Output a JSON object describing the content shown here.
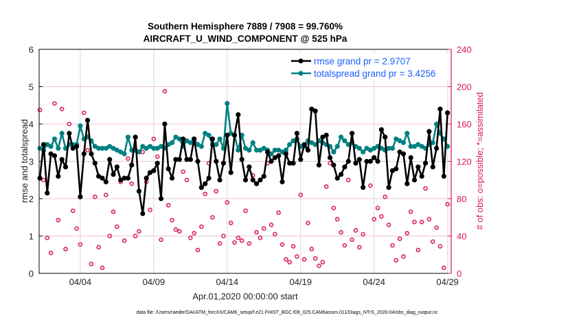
{
  "chart_data": {
    "type": "line",
    "title": "Southern Hemisphere 7889 / 7908 = 99.760%",
    "subtitle": "AIRCRAFT_U_WIND_COMPONENT @ 525 hPa",
    "xlabel": "Apr.01,2020 00:00:00 start",
    "ylabel": "rmse and totalspread",
    "y2label": "# of obs: o=possible; *=assimilated",
    "footer": "data file: /Users/raeder/DAI/ATM_forcXX/CAM6_setup/f.e21.FHIST_BGC.f09_025.CAM6assim.011/Diags_NTrS_2020-04/obs_diag_output.nc",
    "xlim": [
      0.2,
      28.25
    ],
    "ylim": [
      0,
      6
    ],
    "y2lim": [
      0,
      240
    ],
    "grid": true,
    "legend_placement": "top-right",
    "xticks": [
      {
        "day": 3,
        "label": "04/04"
      },
      {
        "day": 8,
        "label": "04/09"
      },
      {
        "day": 13,
        "label": "04/14"
      },
      {
        "day": 18,
        "label": "04/19"
      },
      {
        "day": 23,
        "label": "04/24"
      },
      {
        "day": 28,
        "label": "04/29"
      }
    ],
    "yticks": [
      "0",
      "1",
      "2",
      "3",
      "4",
      "5",
      "6"
    ],
    "y2ticks": [
      "0",
      "40",
      "80",
      "120",
      "160",
      "200",
      "240"
    ],
    "x_start_day": 0.25,
    "x_step_day": 0.25,
    "series": [
      {
        "name": "rmse grand pr = 2.9707",
        "color": "#000000",
        "values": [
          2.55,
          3.45,
          2.15,
          3.2,
          3.15,
          2.6,
          3.05,
          2.85,
          3.75,
          3.35,
          3.4,
          2.05,
          3.2,
          4.1,
          3.2,
          2.95,
          2.6,
          2.55,
          2.45,
          3.05,
          2.65,
          2.85,
          2.5,
          2.55,
          2.55,
          2.9,
          3.65,
          2.2,
          1.6,
          2.55,
          2.7,
          2.75,
          2.95,
          2.0,
          4.0,
          2.8,
          2.55,
          3.05,
          3.05,
          3.6,
          3.05,
          3.05,
          3.6,
          3.0,
          2.3,
          2.4,
          2.55,
          3.6,
          3.0,
          2.5,
          2.95,
          3.7,
          2.7,
          3.7,
          4.25,
          3.05,
          2.5,
          2.85,
          2.5,
          2.4,
          2.5,
          2.6,
          3.25,
          3.0,
          3.1,
          3.15,
          2.45,
          3.2,
          2.95,
          2.95,
          3.75,
          3.05,
          3.45,
          3.3,
          4.4,
          4.35,
          2.9,
          3.65,
          3.7,
          3.1,
          2.9,
          2.55,
          2.65,
          2.85,
          3.0,
          3.75,
          2.95,
          3.05,
          2.3,
          3.0,
          3.0,
          3.1,
          3.0,
          3.85,
          3.65,
          2.3,
          2.75,
          2.8,
          3.25,
          3.2,
          2.4,
          3.1,
          2.5,
          2.85,
          2.6,
          2.95,
          3.8,
          2.85,
          3.35,
          4.4,
          2.6,
          4.3
        ]
      },
      {
        "name": "totalspread grand pr = 3.4256",
        "color": "#008080",
        "values": [
          3.35,
          3.3,
          3.45,
          3.4,
          3.6,
          3.35,
          3.75,
          3.35,
          3.45,
          3.45,
          3.45,
          3.95,
          3.6,
          3.65,
          3.55,
          3.4,
          3.35,
          3.35,
          3.35,
          3.4,
          3.35,
          3.3,
          3.25,
          3.2,
          3.65,
          3.3,
          3.3,
          3.25,
          3.4,
          3.35,
          3.4,
          3.35,
          3.35,
          3.4,
          3.35,
          3.45,
          3.5,
          3.65,
          3.6,
          3.4,
          3.55,
          3.5,
          3.6,
          3.45,
          3.4,
          3.75,
          3.7,
          3.45,
          3.45,
          3.6,
          3.35,
          4.55,
          3.75,
          3.7,
          3.3,
          3.7,
          3.35,
          3.3,
          3.5,
          3.3,
          3.3,
          3.35,
          3.3,
          3.2,
          3.3,
          3.3,
          3.25,
          3.3,
          3.45,
          3.55,
          3.6,
          3.4,
          3.4,
          3.55,
          3.5,
          3.45,
          3.55,
          3.5,
          3.45,
          3.4,
          3.25,
          3.4,
          3.65,
          3.55,
          3.45,
          3.5,
          3.4,
          3.35,
          3.25,
          3.35,
          3.3,
          3.35,
          3.4,
          3.35,
          3.3,
          3.35,
          3.35,
          3.6,
          3.55,
          3.5,
          3.75,
          3.4,
          3.4,
          3.45,
          3.4,
          3.35,
          3.45,
          3.5,
          4.0,
          3.75,
          3.6,
          3.4
        ]
      }
    ],
    "obs_possible": [
      175,
      100,
      38,
      22,
      182,
      57,
      176,
      26,
      160,
      67,
      48,
      31,
      172,
      132,
      10,
      82,
      28,
      6,
      84,
      40,
      66,
      50,
      98,
      35,
      123,
      96,
      40,
      45,
      130,
      98,
      68,
      144,
      125,
      36,
      195,
      73,
      57,
      47,
      45,
      109,
      100,
      38,
      43,
      25,
      50,
      85,
      118,
      60,
      88,
      32,
      40,
      76,
      54,
      33,
      38,
      35,
      67,
      32,
      105,
      44,
      38,
      48,
      118,
      52,
      42,
      65,
      31,
      15,
      12,
      29,
      18,
      84,
      15,
      54,
      26,
      16,
      8,
      12,
      93,
      118,
      70,
      58,
      44,
      30,
      100,
      36,
      46,
      28,
      42,
      120,
      94,
      58,
      70,
      61,
      82,
      52,
      30,
      14,
      37,
      18,
      43,
      66,
      55,
      25,
      55,
      91,
      58,
      34,
      49,
      29,
      6,
      74
    ]
  },
  "legend": {
    "rmse": "rmse grand pr = 2.9707",
    "spread": "totalspread grand pr = 3.4256"
  },
  "colors": {
    "obs": "#d6145a",
    "grid": "#e8c5d0",
    "vgrid": "#d8d8d8"
  }
}
